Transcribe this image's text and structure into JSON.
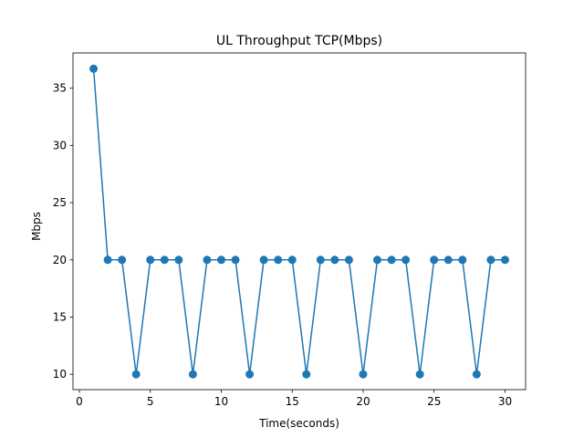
{
  "chart_data": {
    "type": "line",
    "title": "UL Throughput TCP(Mbps)",
    "xlabel": "Time(seconds)",
    "ylabel": "Mbps",
    "xlim": [
      -0.45,
      31.45
    ],
    "ylim": [
      8.66,
      38.08
    ],
    "xticks": [
      0,
      5,
      10,
      15,
      20,
      25,
      30
    ],
    "yticks": [
      10,
      15,
      20,
      25,
      30,
      35
    ],
    "grid": false,
    "series": [
      {
        "color": "#1f77b4",
        "marker": "circle",
        "x": [
          1,
          2,
          3,
          4,
          5,
          6,
          7,
          8,
          9,
          10,
          11,
          12,
          13,
          14,
          15,
          16,
          17,
          18,
          19,
          20,
          21,
          22,
          23,
          24,
          25,
          26,
          27,
          28,
          29,
          30
        ],
        "y": [
          36.7,
          20,
          20,
          10,
          20,
          20,
          20,
          10,
          20,
          20,
          20,
          10,
          20,
          20,
          20,
          10,
          20,
          20,
          20,
          10,
          20,
          20,
          20,
          10,
          20,
          20,
          20,
          10,
          20,
          20
        ]
      }
    ]
  }
}
